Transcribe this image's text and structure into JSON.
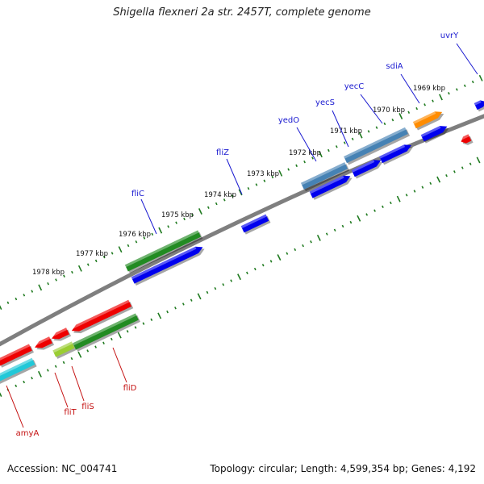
{
  "title": "Shigella flexneri 2a str. 2457T, complete genome",
  "footer": {
    "accession": "Accession: NC_004741",
    "stats": "Topology: circular; Length: 4,599,354 bp; Genes: 4,192"
  },
  "colors": {
    "background": "#ffffff",
    "backbone": "#7f7f7f",
    "ticks": "#1f7a1f",
    "blue_gene": "#0000ee",
    "red_gene": "#ee0000",
    "green_gene": "#228b22",
    "steelblue_gene": "#4682b4",
    "orange_gene": "#ff8c00",
    "cyan_gene": "#22c8d8",
    "yellowgreen_gene": "#9acd32",
    "label_blue": "#1a1ad0",
    "label_red": "#c41010"
  },
  "kbp_labels": [
    "1969 kbp",
    "1970 kbp",
    "1971 kbp",
    "1972 kbp",
    "1973 kbp",
    "1974 kbp",
    "1975 kbp",
    "1976 kbp",
    "1977 kbp",
    "1978 kbp"
  ],
  "gene_labels_top": [
    "uvrY",
    "sdiA",
    "yecC",
    "yecS",
    "yedO",
    "fliZ",
    "fliC"
  ],
  "gene_labels_bottom": [
    "fliD",
    "fliS",
    "fliT",
    "amyA"
  ]
}
